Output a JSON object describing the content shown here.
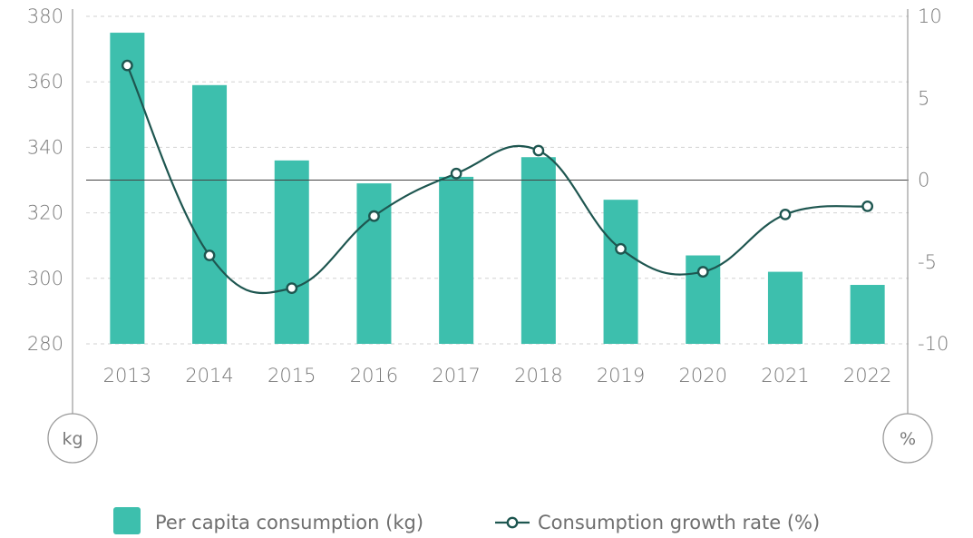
{
  "chart_data": {
    "type": "bar",
    "categories": [
      "2013",
      "2014",
      "2015",
      "2016",
      "2017",
      "2018",
      "2019",
      "2020",
      "2021",
      "2022"
    ],
    "series": [
      {
        "name": "Per capita consumption (kg)",
        "type": "bar",
        "axis": "left",
        "values": [
          375,
          359,
          336,
          329,
          331,
          337,
          324,
          307,
          302,
          298
        ]
      },
      {
        "name": "Consumption growth rate (%)",
        "type": "line",
        "axis": "right",
        "values": [
          7.0,
          -4.6,
          -6.6,
          -2.2,
          0.4,
          1.8,
          -4.2,
          -5.6,
          -2.1,
          -1.6
        ]
      }
    ],
    "y_left": {
      "unit": "kg",
      "ylim": [
        280,
        380
      ],
      "ticks": [
        "380",
        "360",
        "340",
        "320",
        "300",
        "280"
      ]
    },
    "y_right": {
      "unit": "%",
      "ylim": [
        -10,
        10
      ],
      "ticks": [
        "10",
        "5",
        "0",
        "-5",
        "-10"
      ]
    },
    "grid": "horizontal-dashed",
    "legend_position": "bottom",
    "colors": {
      "bar": "#3dbfad",
      "line": "#1e5650",
      "grid": "#d2d2d2",
      "axis": "#9a9a9a",
      "zero_line": "#444444"
    }
  }
}
